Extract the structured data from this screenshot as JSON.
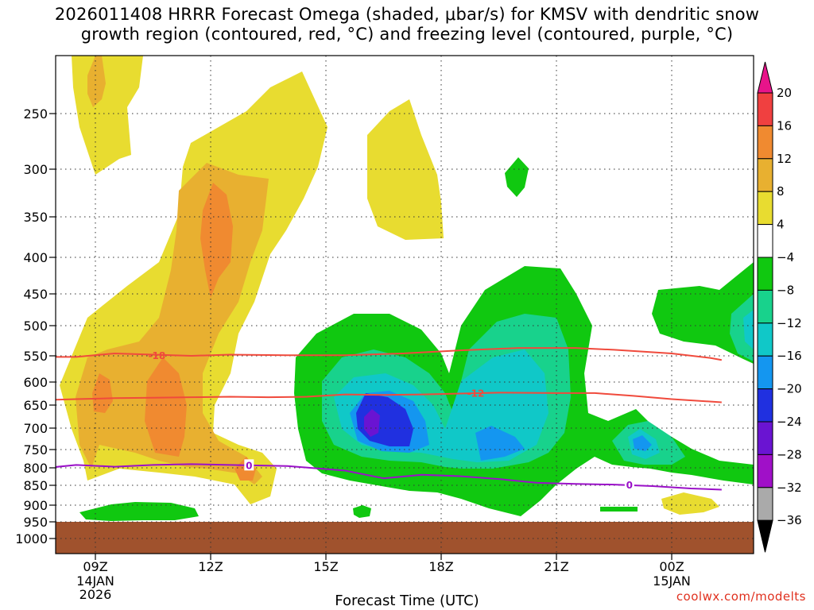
{
  "title_line1": "2026011408 HRRR Forecast Omega (shaded, μbar/s) for KMSV with dendritic snow",
  "title_line2": "growth region (contoured, red, °C) and freezing level (contoured, purple, °C)",
  "credit": "coolwx.com/modelts",
  "chart_data": {
    "type": "contour",
    "title": "2026011408 HRRR Forecast Omega (shaded, μbar/s) for KMSV with dendritic snow growth region (contoured, red, °C) and freezing level (contoured, purple, °C)",
    "xlabel": "Forecast Time (UTC)",
    "ylabel": "",
    "x_ticks": [
      {
        "label": "09Z",
        "sub": [
          "14JAN",
          "2026"
        ],
        "hour": 9
      },
      {
        "label": "12Z",
        "sub": [],
        "hour": 12
      },
      {
        "label": "15Z",
        "sub": [],
        "hour": 15
      },
      {
        "label": "18Z",
        "sub": [],
        "hour": 18
      },
      {
        "label": "21Z",
        "sub": [],
        "hour": 21
      },
      {
        "label": "00Z",
        "sub": [
          "15JAN"
        ],
        "hour": 24
      }
    ],
    "y_ticks": [
      250,
      300,
      350,
      400,
      450,
      500,
      550,
      600,
      650,
      700,
      750,
      800,
      850,
      900,
      950,
      1000
    ],
    "colorbar": {
      "labels": [
        "20",
        "16",
        "12",
        "8",
        "4",
        "−4",
        "−8",
        "−12",
        "−16",
        "−20",
        "−24",
        "−28",
        "−32",
        "−36"
      ],
      "colors": [
        "#e8148a",
        "#f04040",
        "#f08a30",
        "#e8b030",
        "#e8dc30",
        "#ffffff",
        "#10c810",
        "#18d28c",
        "#10c8c8",
        "#1496f0",
        "#2030e0",
        "#6a14d2",
        "#a010c8",
        "#aaaaaa",
        "#000000"
      ]
    },
    "contours_red": [
      {
        "label": "-18",
        "points": [
          [
            7.3,
            552
          ],
          [
            8.5,
            552
          ],
          [
            9.5,
            546
          ],
          [
            10.5,
            548
          ],
          [
            11.5,
            550
          ],
          [
            12.5,
            548
          ],
          [
            14.0,
            549
          ],
          [
            15.5,
            549
          ],
          [
            17.0,
            546
          ],
          [
            18.5,
            541
          ],
          [
            20.0,
            537
          ],
          [
            21.5,
            537
          ],
          [
            22.5,
            540
          ],
          [
            24.0,
            546
          ],
          [
            25.0,
            554
          ],
          [
            25.3,
            558
          ]
        ],
        "label_at": [
          10.6,
          549
        ]
      },
      {
        "label": "-12",
        "points": [
          [
            7.3,
            640
          ],
          [
            8.5,
            637
          ],
          [
            9.5,
            635
          ],
          [
            10.5,
            634
          ],
          [
            11.5,
            633
          ],
          [
            12.5,
            632
          ],
          [
            13.5,
            633
          ],
          [
            14.5,
            632
          ],
          [
            15.5,
            627
          ],
          [
            16.5,
            628
          ],
          [
            17.5,
            627
          ],
          [
            18.5,
            625
          ],
          [
            19.5,
            623
          ],
          [
            21.0,
            624
          ],
          [
            22.0,
            624
          ],
          [
            23.0,
            630
          ],
          [
            24.0,
            637
          ],
          [
            25.3,
            644
          ]
        ],
        "label_at": [
          18.9,
          623
        ]
      }
    ],
    "contours_purple": [
      {
        "label": "0",
        "points": [
          [
            7.3,
            805
          ],
          [
            8.5,
            792
          ],
          [
            9.5,
            797
          ],
          [
            10.5,
            792
          ],
          [
            11.5,
            790
          ],
          [
            12.5,
            792
          ],
          [
            14.0,
            795
          ],
          [
            15.5,
            808
          ],
          [
            16.5,
            830
          ],
          [
            17.5,
            820
          ],
          [
            18.5,
            824
          ],
          [
            19.5,
            832
          ],
          [
            20.5,
            843
          ],
          [
            21.5,
            846
          ],
          [
            22.5,
            848
          ],
          [
            23.5,
            852
          ],
          [
            24.5,
            858
          ],
          [
            25.3,
            861
          ]
        ],
        "label_markers": [
          [
            13.0,
            792
          ],
          [
            22.9,
            848
          ]
        ]
      }
    ],
    "shaded_regions": [
      {
        "level": "4 to 8",
        "color": "#e8dc30"
      },
      {
        "level": "8 to 12",
        "color": "#e8b030"
      },
      {
        "level": "12 to 16",
        "color": "#f08a30"
      },
      {
        "level": "-8 to -4",
        "color": "#10c810"
      },
      {
        "level": "-12 to -8",
        "color": "#18d28c"
      },
      {
        "level": "-16 to -12",
        "color": "#10c8c8"
      },
      {
        "level": "-20 to -16",
        "color": "#1496f0"
      },
      {
        "level": "-24 to -20",
        "color": "#2030e0"
      },
      {
        "level": "-28 to -24",
        "color": "#6a14d2"
      }
    ],
    "terrain_color": "#a0522d",
    "terrain_top_hpa": 950,
    "xlim_hours": [
      7.3,
      25.3
    ],
    "ylim_hpa": [
      200,
      1030
    ],
    "grid": true
  }
}
